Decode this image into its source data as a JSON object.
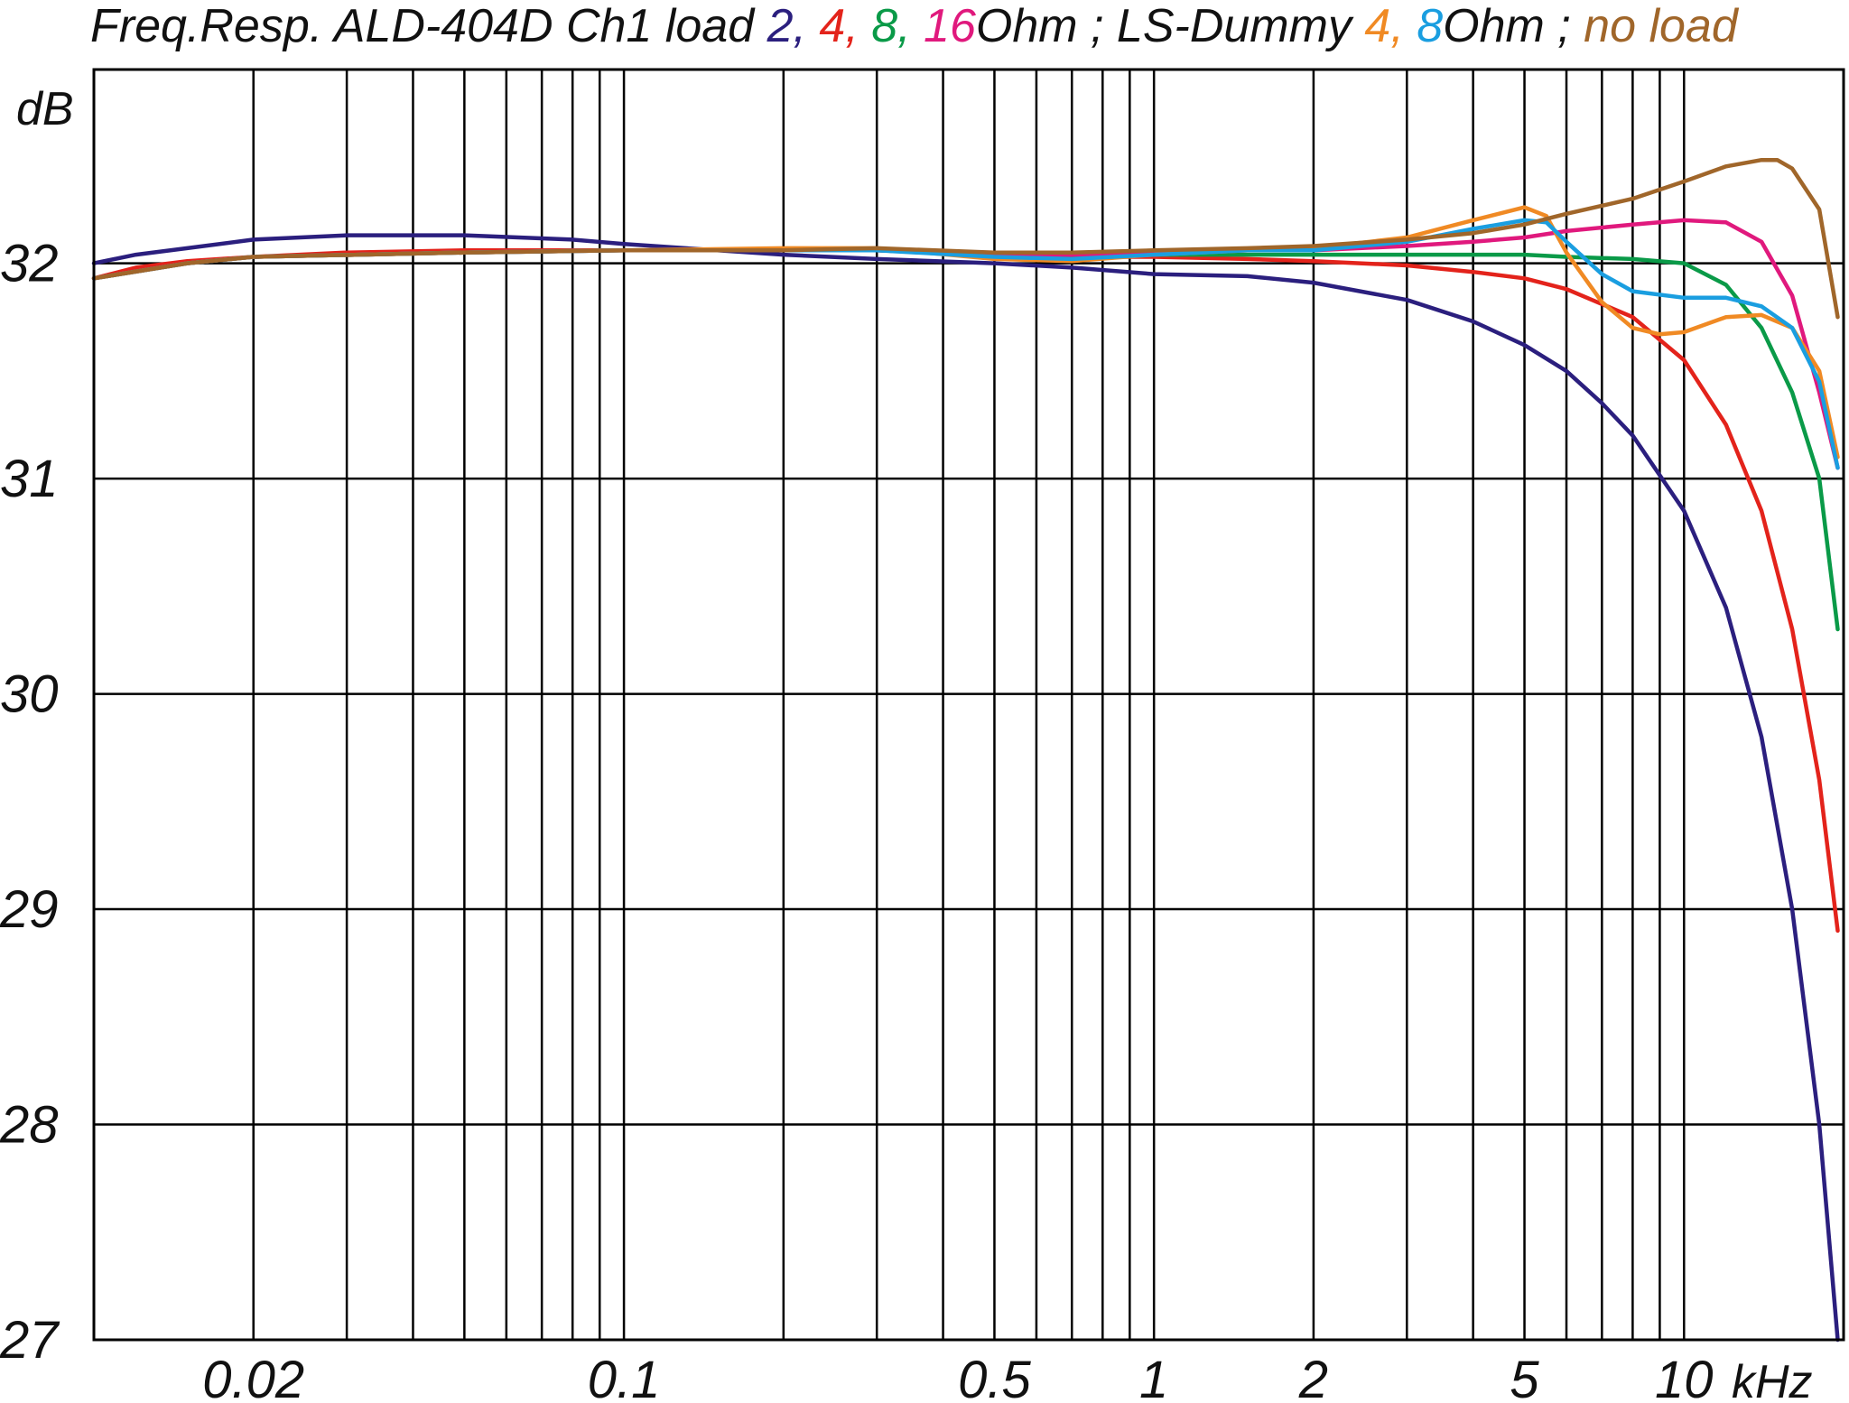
{
  "title": {
    "prefix": "Freq.Resp. ALD-404D Ch1 load ",
    "loads": [
      {
        "text": "2",
        "color": "#2b1f7e"
      },
      {
        "text": ", ",
        "color": "#2b1f7e"
      },
      {
        "text": "4",
        "color": "#e3231b"
      },
      {
        "text": ", ",
        "color": "#e3231b"
      },
      {
        "text": "8",
        "color": "#0a9a48"
      },
      {
        "text": ", ",
        "color": "#0a9a48"
      },
      {
        "text": "16",
        "color": "#e0197d"
      }
    ],
    "mid": "Ohm ; LS-Dummy ",
    "dummy": [
      {
        "text": "4",
        "color": "#f08a24"
      },
      {
        "text": ", ",
        "color": "#f08a24"
      },
      {
        "text": "8",
        "color": "#1a9ee0"
      }
    ],
    "tail": "Ohm ; ",
    "noload": {
      "text": "no load",
      "color": "#a0662a"
    }
  },
  "chart_data": {
    "type": "line",
    "title": "Freq.Resp. ALD-404D Ch1 load 2, 4, 8, 16 Ohm ; LS-Dummy 4, 8 Ohm ; no load",
    "xlabel": "kHz",
    "ylabel": "dB",
    "xscale": "log",
    "xlim": [
      0.01,
      20
    ],
    "ylim": [
      27,
      32.9
    ],
    "grid": true,
    "x_ticks": [
      {
        "value": 0.02,
        "label": "0.02"
      },
      {
        "value": 0.1,
        "label": "0.1"
      },
      {
        "value": 0.5,
        "label": "0.5"
      },
      {
        "value": 1,
        "label": "1"
      },
      {
        "value": 2,
        "label": "2"
      },
      {
        "value": 5,
        "label": "5"
      },
      {
        "value": 10,
        "label": "10"
      }
    ],
    "y_ticks": [
      27,
      28,
      29,
      30,
      31,
      32
    ],
    "series": [
      {
        "name": "2 Ohm",
        "color": "#2b1f7e",
        "x": [
          0.01,
          0.012,
          0.015,
          0.02,
          0.03,
          0.05,
          0.08,
          0.1,
          0.15,
          0.2,
          0.3,
          0.5,
          0.7,
          1,
          1.5,
          2,
          3,
          4,
          5,
          6,
          7,
          8,
          10,
          12,
          14,
          16,
          18,
          19.5
        ],
        "values": [
          32.0,
          32.04,
          32.07,
          32.11,
          32.13,
          32.13,
          32.11,
          32.09,
          32.06,
          32.04,
          32.02,
          32.0,
          31.98,
          31.95,
          31.94,
          31.91,
          31.83,
          31.73,
          31.62,
          31.5,
          31.35,
          31.2,
          30.85,
          30.4,
          29.8,
          29.0,
          28.0,
          27.0
        ]
      },
      {
        "name": "4 Ohm",
        "color": "#e3231b",
        "x": [
          0.01,
          0.012,
          0.015,
          0.02,
          0.03,
          0.05,
          0.1,
          0.2,
          0.3,
          0.5,
          0.7,
          1,
          1.5,
          2,
          3,
          4,
          5,
          6,
          8,
          10,
          12,
          14,
          16,
          18,
          19.5
        ],
        "values": [
          31.93,
          31.98,
          32.01,
          32.03,
          32.05,
          32.06,
          32.06,
          32.06,
          32.06,
          32.04,
          32.03,
          32.03,
          32.02,
          32.01,
          31.99,
          31.96,
          31.93,
          31.88,
          31.75,
          31.55,
          31.25,
          30.85,
          30.3,
          29.6,
          28.9
        ]
      },
      {
        "name": "8 Ohm",
        "color": "#0a9a48",
        "x": [
          0.01,
          0.015,
          0.02,
          0.05,
          0.1,
          0.2,
          0.3,
          0.5,
          0.7,
          1,
          1.5,
          2,
          3,
          4,
          5,
          6,
          8,
          10,
          12,
          14,
          16,
          18,
          19.5
        ],
        "values": [
          31.93,
          32.0,
          32.03,
          32.05,
          32.06,
          32.06,
          32.06,
          32.04,
          32.04,
          32.04,
          32.04,
          32.04,
          32.04,
          32.04,
          32.04,
          32.03,
          32.02,
          32.0,
          31.9,
          31.7,
          31.4,
          31.0,
          30.3
        ]
      },
      {
        "name": "16 Ohm",
        "color": "#e0197d",
        "x": [
          0.01,
          0.015,
          0.02,
          0.05,
          0.1,
          0.2,
          0.3,
          0.5,
          0.7,
          1,
          1.5,
          2,
          3,
          4,
          5,
          6,
          8,
          10,
          12,
          14,
          16,
          18,
          19.5
        ],
        "values": [
          31.93,
          32.0,
          32.03,
          32.05,
          32.06,
          32.06,
          32.06,
          32.04,
          32.04,
          32.05,
          32.06,
          32.06,
          32.08,
          32.1,
          32.12,
          32.15,
          32.18,
          32.2,
          32.19,
          32.1,
          31.85,
          31.4,
          31.05
        ]
      },
      {
        "name": "LS-Dummy 4 Ohm",
        "color": "#f08a24",
        "x": [
          0.01,
          0.015,
          0.02,
          0.05,
          0.1,
          0.2,
          0.3,
          0.5,
          0.7,
          1,
          1.5,
          2,
          3,
          4,
          5,
          5.5,
          6,
          7,
          8,
          9,
          10,
          12,
          14,
          16,
          18,
          19.5
        ],
        "values": [
          31.93,
          32.0,
          32.03,
          32.05,
          32.06,
          32.07,
          32.07,
          32.02,
          32.01,
          32.04,
          32.06,
          32.07,
          32.12,
          32.2,
          32.26,
          32.22,
          32.05,
          31.82,
          31.7,
          31.67,
          31.68,
          31.75,
          31.76,
          31.7,
          31.5,
          31.1
        ]
      },
      {
        "name": "LS-Dummy 8 Ohm",
        "color": "#1a9ee0",
        "x": [
          0.01,
          0.015,
          0.02,
          0.05,
          0.1,
          0.2,
          0.3,
          0.5,
          0.7,
          1,
          1.5,
          2,
          3,
          4,
          5,
          5.5,
          6,
          7,
          8,
          10,
          12,
          14,
          16,
          18,
          19.5
        ],
        "values": [
          31.93,
          32.0,
          32.03,
          32.05,
          32.06,
          32.06,
          32.06,
          32.03,
          32.02,
          32.04,
          32.06,
          32.06,
          32.1,
          32.16,
          32.2,
          32.19,
          32.1,
          31.95,
          31.87,
          31.84,
          31.84,
          31.8,
          31.7,
          31.45,
          31.05
        ]
      },
      {
        "name": "no load",
        "color": "#a0662a",
        "x": [
          0.01,
          0.015,
          0.02,
          0.05,
          0.1,
          0.2,
          0.3,
          0.5,
          0.7,
          1,
          1.5,
          2,
          3,
          4,
          5,
          6,
          8,
          10,
          12,
          14,
          15,
          16,
          18,
          19.5
        ],
        "values": [
          31.93,
          32.0,
          32.03,
          32.05,
          32.06,
          32.06,
          32.07,
          32.05,
          32.05,
          32.06,
          32.07,
          32.08,
          32.11,
          32.14,
          32.18,
          32.23,
          32.3,
          32.38,
          32.45,
          32.48,
          32.48,
          32.44,
          32.25,
          31.75
        ]
      }
    ]
  }
}
